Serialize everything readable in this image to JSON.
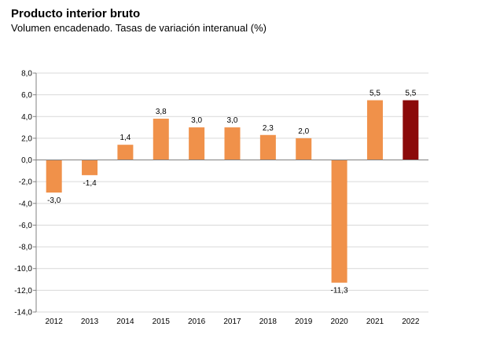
{
  "chart_data": {
    "type": "bar",
    "title": "Producto interior bruto",
    "subtitle": "Volumen encadenado. Tasas de variación interanual (%)",
    "categories": [
      "2012",
      "2013",
      "2014",
      "2015",
      "2016",
      "2017",
      "2018",
      "2019",
      "2020",
      "2021",
      "2022"
    ],
    "values": [
      -3.0,
      -1.4,
      1.4,
      3.8,
      3.0,
      3.0,
      2.3,
      2.0,
      -11.3,
      5.5,
      5.5
    ],
    "value_labels": [
      "-3,0",
      "-1,4",
      "1,4",
      "3,8",
      "3,0",
      "3,0",
      "2,3",
      "2,0",
      "-11,3",
      "5,5",
      "5,5"
    ],
    "ylim": [
      -14,
      8
    ],
    "yticks": [
      8,
      6,
      4,
      2,
      0,
      -2,
      -4,
      -6,
      -8,
      -10,
      -12,
      -14
    ],
    "ytick_labels": [
      "8,0",
      "6,0",
      "4,0",
      "2,0",
      "0,0",
      "-2,0",
      "-4,0",
      "-6,0",
      "-8,0",
      "-10,0",
      "-12,0",
      "-14,0"
    ],
    "grid": true,
    "legend": "none",
    "colors": {
      "default": "#f0914a",
      "highlight": "#8b0a0a",
      "grid": "#d9d9d9",
      "axis": "#808080"
    },
    "highlight_index": 10
  }
}
